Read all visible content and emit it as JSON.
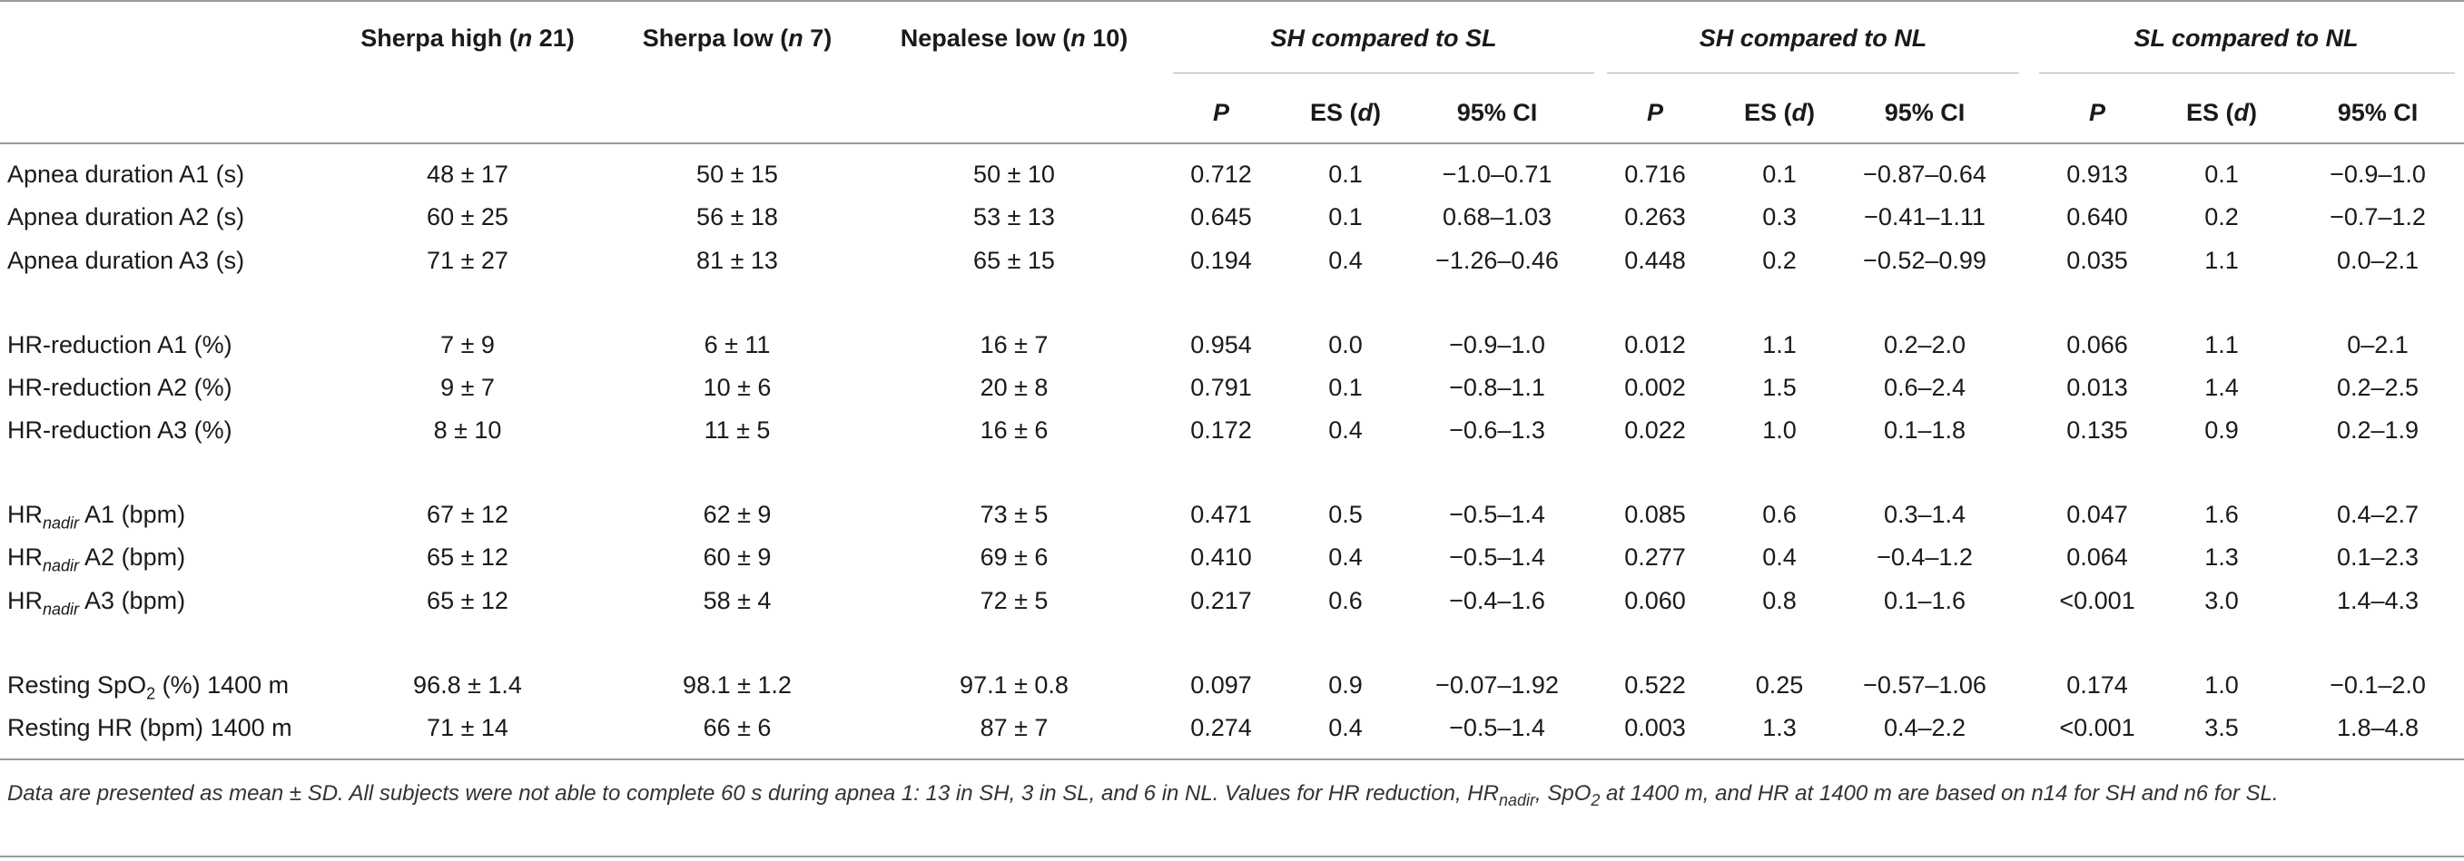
{
  "table": {
    "group_headers": {
      "sh": "Sherpa high (",
      "sh_n": "n",
      "sh_count": " 21)",
      "sl": "Sherpa low (",
      "sl_n": "n",
      "sl_count": " 7)",
      "nl": "Nepalese low (",
      "nl_n": "n",
      "nl_count": " 10)",
      "cmp1": "SH compared to SL",
      "cmp2": "SH compared to NL",
      "cmp3": "SL compared to NL"
    },
    "sub_headers": {
      "p": "P",
      "es": "ES (",
      "es_d": "d",
      "es_close": ")",
      "ci": "95% CI"
    },
    "rows": [
      {
        "label": "Apnea duration A1 (s)",
        "sh": "48 ± 17",
        "sl": "50 ± 15",
        "nl": "50 ± 10",
        "p1": "0.712",
        "es1": "0.1",
        "ci1": "−1.0–0.71",
        "p2": "0.716",
        "es2": "0.1",
        "ci2": "−0.87–0.64",
        "p3": "0.913",
        "es3": "0.1",
        "ci3": "−0.9–1.0"
      },
      {
        "label": "Apnea duration A2 (s)",
        "sh": "60 ± 25",
        "sl": "56 ± 18",
        "nl": "53 ± 13",
        "p1": "0.645",
        "es1": "0.1",
        "ci1": "0.68–1.03",
        "p2": "0.263",
        "es2": "0.3",
        "ci2": "−0.41–1.11",
        "p3": "0.640",
        "es3": "0.2",
        "ci3": "−0.7–1.2"
      },
      {
        "label": "Apnea duration A3 (s)",
        "sh": "71 ± 27",
        "sl": "81 ± 13",
        "nl": "65 ± 15",
        "p1": "0.194",
        "es1": "0.4",
        "ci1": "−1.26–0.46",
        "p2": "0.448",
        "es2": "0.2",
        "ci2": "−0.52–0.99",
        "p3": "0.035",
        "es3": "1.1",
        "ci3": "0.0–2.1"
      },
      {
        "label": "HR-reduction A1 (%)",
        "sh": "7 ± 9",
        "sl": "6 ± 11",
        "nl": "16 ± 7",
        "p1": "0.954",
        "es1": "0.0",
        "ci1": "−0.9–1.0",
        "p2": "0.012",
        "es2": "1.1",
        "ci2": "0.2–2.0",
        "p3": "0.066",
        "es3": "1.1",
        "ci3": "0–2.1"
      },
      {
        "label": "HR-reduction A2 (%)",
        "sh": "9 ± 7",
        "sl": "10 ± 6",
        "nl": "20 ± 8",
        "p1": "0.791",
        "es1": "0.1",
        "ci1": "−0.8–1.1",
        "p2": "0.002",
        "es2": "1.5",
        "ci2": "0.6–2.4",
        "p3": "0.013",
        "es3": "1.4",
        "ci3": "0.2–2.5"
      },
      {
        "label": "HR-reduction A3 (%)",
        "sh": "8 ± 10",
        "sl": "11 ± 5",
        "nl": "16 ± 6",
        "p1": "0.172",
        "es1": "0.4",
        "ci1": "−0.6–1.3",
        "p2": "0.022",
        "es2": "1.0",
        "ci2": "0.1–1.8",
        "p3": "0.135",
        "es3": "0.9",
        "ci3": "0.2–1.9"
      },
      {
        "label_main": "HR",
        "label_sub": "nadir",
        "label_rest": " A1 (bpm)",
        "sh": "67 ± 12",
        "sl": "62 ± 9",
        "nl": "73 ± 5",
        "p1": "0.471",
        "es1": "0.5",
        "ci1": "−0.5–1.4",
        "p2": "0.085",
        "es2": "0.6",
        "ci2": "0.3–1.4",
        "p3": "0.047",
        "es3": "1.6",
        "ci3": "0.4–2.7"
      },
      {
        "label_main": "HR",
        "label_sub": "nadir",
        "label_rest": " A2 (bpm)",
        "sh": "65 ± 12",
        "sl": "60 ± 9",
        "nl": "69 ± 6",
        "p1": "0.410",
        "es1": "0.4",
        "ci1": "−0.5–1.4",
        "p2": "0.277",
        "es2": "0.4",
        "ci2": "−0.4–1.2",
        "p3": "0.064",
        "es3": "1.3",
        "ci3": "0.1–2.3"
      },
      {
        "label_main": "HR",
        "label_sub": "nadir",
        "label_rest": " A3 (bpm)",
        "sh": "65 ± 12",
        "sl": "58 ± 4",
        "nl": "72 ± 5",
        "p1": "0.217",
        "es1": "0.6",
        "ci1": "−0.4–1.6",
        "p2": "0.060",
        "es2": "0.8",
        "ci2": "0.1–1.6",
        "p3": "<0.001",
        "es3": "3.0",
        "ci3": "1.4–4.3"
      },
      {
        "label_main": "Resting SpO",
        "label_sub": "2",
        "label_rest": " (%) 1400 m",
        "sh": "96.8 ± 1.4",
        "sl": "98.1 ± 1.2",
        "nl": "97.1 ± 0.8",
        "p1": "0.097",
        "es1": "0.9",
        "ci1": "−0.07–1.92",
        "p2": "0.522",
        "es2": "0.25",
        "ci2": "−0.57–1.06",
        "p3": "0.174",
        "es3": "1.0",
        "ci3": "−0.1–2.0"
      },
      {
        "label": "Resting HR (bpm) 1400 m",
        "sh": "71 ± 14",
        "sl": "66 ± 6",
        "nl": "87 ± 7",
        "p1": "0.274",
        "es1": "0.4",
        "ci1": "−0.5–1.4",
        "p2": "0.003",
        "es2": "1.3",
        "ci2": "0.4–2.2",
        "p3": "<0.001",
        "es3": "3.5",
        "ci3": "1.8–4.8"
      }
    ],
    "footnote": {
      "part1": "Data are presented as mean ± SD. All subjects were not able to complete 60 s during apnea 1: 13 in SH, 3 in SL, and 6 in NL. Values for HR reduction, HR",
      "sub1": "nadir",
      "part2": ", SpO",
      "sub2": "2",
      "part3": " at 1400 m, and HR at 1400 m are based on n14 for SH and n6 for SL."
    }
  }
}
